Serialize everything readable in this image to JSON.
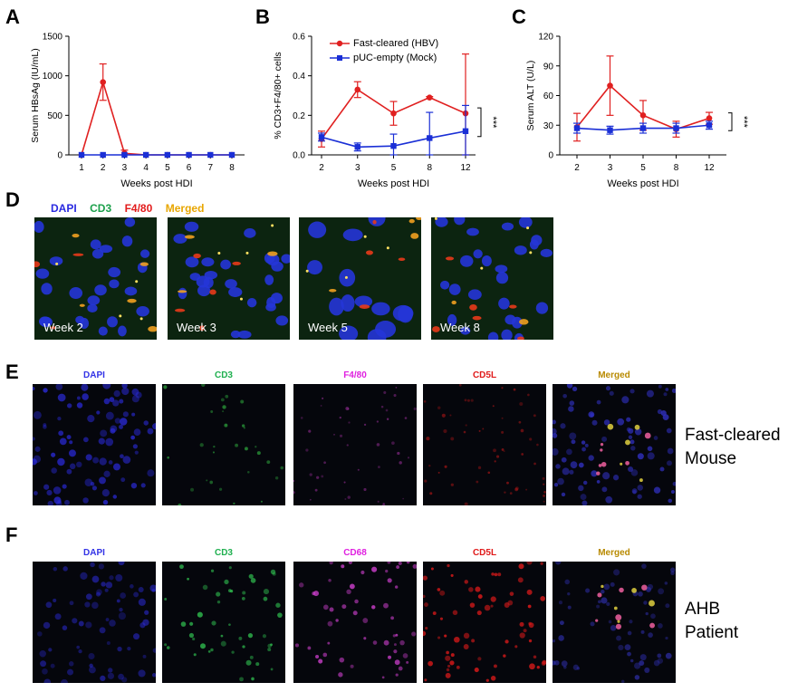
{
  "panels": {
    "a": "A",
    "b": "B",
    "c": "C",
    "d": "D",
    "e": "E",
    "f": "F"
  },
  "chart_data": [
    {
      "id": "A",
      "type": "line",
      "title": "",
      "xlabel": "Weeks post HDI",
      "ylabel": "Serum HBsAg (IU/mL)",
      "categories": [
        "1",
        "2",
        "3",
        "4",
        "5",
        "6",
        "7",
        "8"
      ],
      "ylim": [
        0,
        1500
      ],
      "yticks": [
        0,
        500,
        1000,
        1500
      ],
      "series": [
        {
          "name": "Fast-cleared (HBV)",
          "color": "#e02020",
          "marker": "circle",
          "values": [
            0,
            920,
            20,
            0,
            0,
            0,
            0,
            0
          ],
          "err": [
            0,
            230,
            40,
            0,
            0,
            0,
            0,
            0
          ]
        },
        {
          "name": "pUC-empty (Mock)",
          "color": "#1a2fd6",
          "marker": "square",
          "values": [
            0,
            0,
            0,
            0,
            0,
            0,
            0,
            0
          ],
          "err": [
            0,
            0,
            0,
            0,
            0,
            0,
            0,
            0
          ]
        }
      ]
    },
    {
      "id": "B",
      "type": "line",
      "title": "",
      "xlabel": "Weeks post HDI",
      "ylabel": "% CD3+F4/80+ cells",
      "categories": [
        "2",
        "3",
        "5",
        "8",
        "12"
      ],
      "ylim": [
        0,
        0.6
      ],
      "yticks": [
        0.0,
        0.2,
        0.4,
        0.6
      ],
      "significance": "***",
      "series": [
        {
          "name": "Fast-cleared (HBV)",
          "color": "#e02020",
          "marker": "circle",
          "values": [
            0.08,
            0.33,
            0.21,
            0.29,
            0.21
          ],
          "err": [
            0.04,
            0.04,
            0.06,
            0.005,
            0.3
          ]
        },
        {
          "name": "pUC-empty (Mock)",
          "color": "#1a2fd6",
          "marker": "square",
          "values": [
            0.09,
            0.04,
            0.045,
            0.085,
            0.12
          ],
          "err": [
            0.02,
            0.02,
            0.06,
            0.13,
            0.13
          ]
        }
      ]
    },
    {
      "id": "C",
      "type": "line",
      "title": "",
      "xlabel": "Weeks post HDI",
      "ylabel": "Serum ALT (U/L)",
      "categories": [
        "2",
        "3",
        "5",
        "8",
        "12"
      ],
      "ylim": [
        0,
        120
      ],
      "yticks": [
        0,
        30,
        60,
        90,
        120
      ],
      "significance": "***",
      "series": [
        {
          "name": "Fast-cleared (HBV)",
          "color": "#e02020",
          "marker": "circle",
          "values": [
            28,
            70,
            40,
            26,
            37
          ],
          "err": [
            14,
            30,
            15,
            8,
            6
          ]
        },
        {
          "name": "pUC-empty (Mock)",
          "color": "#1a2fd6",
          "marker": "square",
          "values": [
            27,
            25,
            27,
            27,
            30
          ],
          "err": [
            5,
            4,
            5,
            5,
            4
          ]
        }
      ]
    }
  ],
  "legend": {
    "hbv": "Fast-cleared (HBV)",
    "mock": "pUC-empty (Mock)"
  },
  "panel_d": {
    "stains": [
      {
        "label": "DAPI",
        "color": "#2a2ae0"
      },
      {
        "label": "CD3",
        "color": "#1aa04a"
      },
      {
        "label": "F4/80",
        "color": "#e21b1b"
      },
      {
        "label": "Merged",
        "color": "#e8a600"
      }
    ],
    "weeks": [
      "Week 2",
      "Week 3",
      "Week 5",
      "Week 8"
    ]
  },
  "panel_e": {
    "stains": [
      {
        "label": "DAPI",
        "color": "#3232e6"
      },
      {
        "label": "CD3",
        "color": "#20b050"
      },
      {
        "label": "F4/80",
        "color": "#e020e0"
      },
      {
        "label": "CD5L",
        "color": "#e01a1a"
      },
      {
        "label": "Merged",
        "color": "#b88a00"
      }
    ],
    "side_label_1": "Fast-cleared",
    "side_label_2": "Mouse"
  },
  "panel_f": {
    "stains": [
      {
        "label": "DAPI",
        "color": "#3232e6"
      },
      {
        "label": "CD3",
        "color": "#20b050"
      },
      {
        "label": "CD68",
        "color": "#e020e0"
      },
      {
        "label": "CD5L",
        "color": "#e01a1a"
      },
      {
        "label": "Merged",
        "color": "#b88a00"
      }
    ],
    "side_label_1": "AHB",
    "side_label_2": "Patient"
  }
}
